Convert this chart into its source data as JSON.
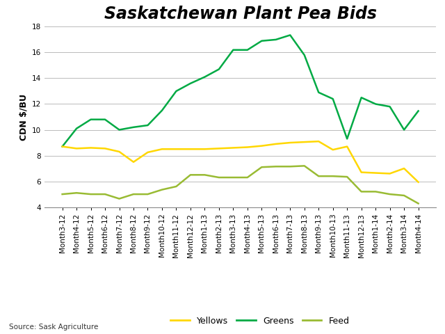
{
  "title": "Saskatchewan Plant Pea Bids",
  "ylabel": "CDN $/BU",
  "source": "Source: Sask Agriculture",
  "ylim": [
    4,
    18
  ],
  "yticks": [
    4,
    6,
    8,
    10,
    12,
    14,
    16,
    18
  ],
  "x_labels": [
    "Month3-12",
    "Month4-12",
    "Month5-12",
    "Month6-12",
    "Month7-12",
    "Month8-12",
    "Month9-12",
    "Month10-12",
    "Month11-12",
    "Month12-12",
    "Month1-13",
    "Month2-13",
    "Month3-13",
    "Month4-13",
    "Month5-13",
    "Month6-13",
    "Month7-13",
    "Month8-13",
    "Month9-13",
    "Month10-13",
    "Month11-13",
    "Month12-13",
    "Month1-14",
    "Month2-14",
    "Month3-14",
    "Month4-14"
  ],
  "greens": [
    8.7,
    10.1,
    10.8,
    10.8,
    10.0,
    10.2,
    10.35,
    11.5,
    13.0,
    13.6,
    14.1,
    14.7,
    16.2,
    16.2,
    16.9,
    17.0,
    17.35,
    15.8,
    12.9,
    12.4,
    9.3,
    12.5,
    12.0,
    11.8,
    10.0,
    11.46
  ],
  "yellows": [
    8.7,
    8.55,
    8.6,
    8.55,
    8.3,
    7.5,
    8.25,
    8.5,
    8.5,
    8.5,
    8.5,
    8.55,
    8.6,
    8.65,
    8.75,
    8.9,
    9.0,
    9.05,
    9.1,
    8.45,
    8.7,
    6.7,
    6.65,
    6.6,
    7.0,
    5.94
  ],
  "feed": [
    5.0,
    5.1,
    5.0,
    5.0,
    4.65,
    5.0,
    5.0,
    5.35,
    5.6,
    6.5,
    6.5,
    6.3,
    6.3,
    6.3,
    7.1,
    7.15,
    7.15,
    7.2,
    6.4,
    6.4,
    6.35,
    5.2,
    5.2,
    5.0,
    4.9,
    4.28
  ],
  "greens_color": "#00aa44",
  "yellows_color": "#FFD700",
  "feed_color": "#99bb33",
  "background_color": "#ffffff",
  "grid_color": "#bbbbbb",
  "title_fontsize": 17,
  "label_fontsize": 9,
  "tick_fontsize": 7.5,
  "legend_fontsize": 9,
  "source_fontsize": 7.5
}
